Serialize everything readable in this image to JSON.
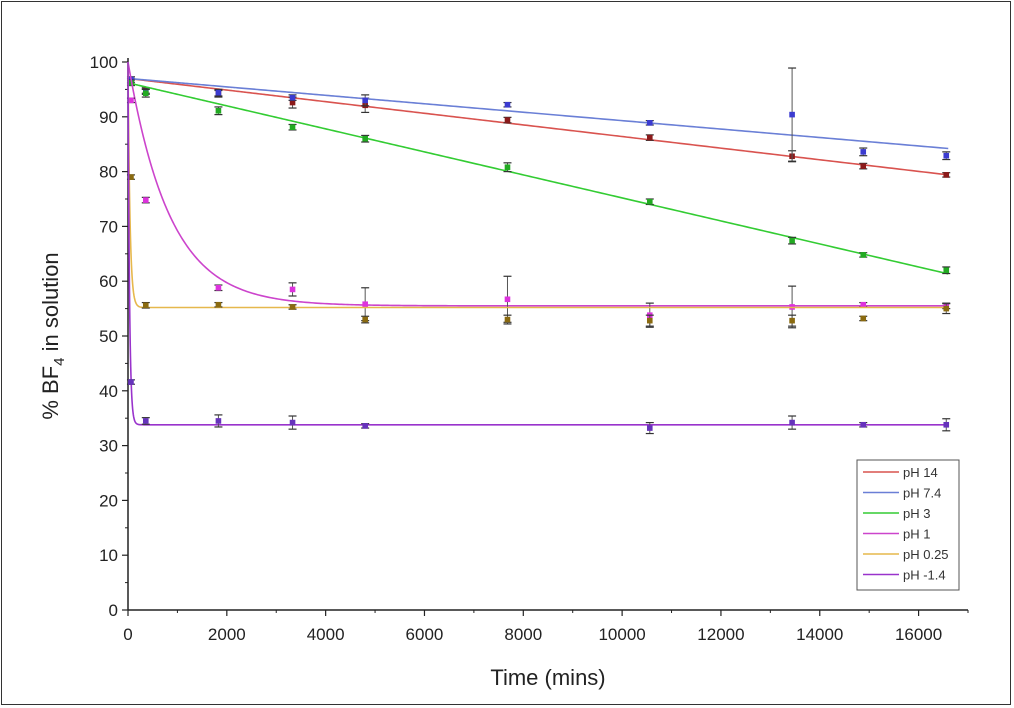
{
  "chart_data": {
    "type": "scatter",
    "title": "",
    "xlabel": "Time (mins)",
    "ylabel_prefix": "% BF",
    "ylabel_sub": "4",
    "ylabel_suffix": " in solution",
    "xlim": [
      0,
      17000
    ],
    "ylim": [
      0,
      100
    ],
    "xticks": [
      0,
      2000,
      4000,
      6000,
      8000,
      10000,
      12000,
      14000,
      16000
    ],
    "yticks": [
      0,
      10,
      20,
      30,
      40,
      50,
      60,
      70,
      80,
      90,
      100
    ],
    "grid": false,
    "legend_position": "bottom-right",
    "series": [
      {
        "name": "pH 14",
        "line_color": "#d9534f",
        "marker_color": "#8b1a1a",
        "fit": {
          "kind": "linear",
          "a": 97.0,
          "k": 0.00106
        },
        "points": [
          {
            "x": 60,
            "y": 96.5,
            "err": 0.5
          },
          {
            "x": 360,
            "y": 94.8,
            "err": 0.5
          },
          {
            "x": 1830,
            "y": 94.2,
            "err": 0.6
          },
          {
            "x": 3330,
            "y": 92.6,
            "err": 1.0
          },
          {
            "x": 4800,
            "y": 92.1,
            "err": 1.3
          },
          {
            "x": 7680,
            "y": 89.4,
            "err": 0.5
          },
          {
            "x": 10560,
            "y": 86.2,
            "err": 0.5
          },
          {
            "x": 13440,
            "y": 82.8,
            "err": 1.0
          },
          {
            "x": 14880,
            "y": 81.0,
            "err": 0.5
          },
          {
            "x": 16560,
            "y": 79.4,
            "err": 0.4
          }
        ]
      },
      {
        "name": "pH 7.4",
        "line_color": "#6a7fd6",
        "marker_color": "#3b3bd0",
        "fit": {
          "kind": "linear",
          "a": 97.0,
          "k": 0.00077
        },
        "points": [
          {
            "x": 60,
            "y": 96.8,
            "err": 0.5
          },
          {
            "x": 360,
            "y": 94.6,
            "err": 0.5
          },
          {
            "x": 1830,
            "y": 94.4,
            "err": 0.6
          },
          {
            "x": 3330,
            "y": 93.5,
            "err": 0.5
          },
          {
            "x": 4800,
            "y": 93.0,
            "err": 1.0
          },
          {
            "x": 7680,
            "y": 92.2,
            "err": 0.4
          },
          {
            "x": 10560,
            "y": 88.9,
            "err": 0.4
          },
          {
            "x": 13440,
            "y": 90.4,
            "err": 8.5
          },
          {
            "x": 14880,
            "y": 83.6,
            "err": 0.7
          },
          {
            "x": 16560,
            "y": 82.9,
            "err": 0.7
          }
        ]
      },
      {
        "name": "pH 3",
        "line_color": "#33cc33",
        "marker_color": "#22aa22",
        "fit": {
          "kind": "linear",
          "a": 96.2,
          "k": 0.0021
        },
        "points": [
          {
            "x": 60,
            "y": 96.2,
            "err": 0.5
          },
          {
            "x": 360,
            "y": 94.3,
            "err": 0.7
          },
          {
            "x": 1830,
            "y": 91.1,
            "err": 0.7
          },
          {
            "x": 3330,
            "y": 88.1,
            "err": 0.5
          },
          {
            "x": 4800,
            "y": 86.0,
            "err": 0.6
          },
          {
            "x": 7680,
            "y": 80.8,
            "err": 0.8
          },
          {
            "x": 10560,
            "y": 74.5,
            "err": 0.5
          },
          {
            "x": 13440,
            "y": 67.4,
            "err": 0.6
          },
          {
            "x": 14880,
            "y": 64.8,
            "err": 0.4
          },
          {
            "x": 16560,
            "y": 62.0,
            "err": 0.6
          }
        ]
      },
      {
        "name": "pH 1",
        "line_color": "#cc44cc",
        "marker_color": "#dd33dd",
        "fit": {
          "kind": "exp",
          "c": 55.5,
          "a": 44.5,
          "t": 850
        },
        "points": [
          {
            "x": 60,
            "y": 93.0,
            "err": 0.4
          },
          {
            "x": 360,
            "y": 74.8,
            "err": 0.5
          },
          {
            "x": 1830,
            "y": 58.8,
            "err": 0.5
          },
          {
            "x": 3330,
            "y": 58.5,
            "err": 1.2
          },
          {
            "x": 4800,
            "y": 55.8,
            "err": 3.0
          },
          {
            "x": 7680,
            "y": 56.7,
            "err": 4.2
          },
          {
            "x": 10560,
            "y": 53.8,
            "err": 2.2
          },
          {
            "x": 13440,
            "y": 55.3,
            "err": 3.8
          },
          {
            "x": 14880,
            "y": 55.7,
            "err": 0.4
          },
          {
            "x": 16560,
            "y": 55.5,
            "err": 0.5
          }
        ]
      },
      {
        "name": "pH 0.25",
        "line_color": "#e6b84c",
        "marker_color": "#8a6a10",
        "fit": {
          "kind": "exp",
          "c": 55.2,
          "a": 44.8,
          "t": 40
        },
        "points": [
          {
            "x": 60,
            "y": 79.0,
            "err": 0.4
          },
          {
            "x": 360,
            "y": 55.6,
            "err": 0.5
          },
          {
            "x": 1830,
            "y": 55.7,
            "err": 0.4
          },
          {
            "x": 3330,
            "y": 55.3,
            "err": 0.4
          },
          {
            "x": 4800,
            "y": 53.0,
            "err": 0.6
          },
          {
            "x": 7680,
            "y": 53.0,
            "err": 0.8
          },
          {
            "x": 10560,
            "y": 52.8,
            "err": 1.0
          },
          {
            "x": 13440,
            "y": 52.8,
            "err": 1.0
          },
          {
            "x": 14880,
            "y": 53.2,
            "err": 0.4
          },
          {
            "x": 16560,
            "y": 55.0,
            "err": 0.9
          }
        ]
      },
      {
        "name": "pH -1.4",
        "line_color": "#9933cc",
        "marker_color": "#6633bb",
        "fit": {
          "kind": "exp",
          "c": 33.8,
          "a": 66.2,
          "t": 30
        },
        "points": [
          {
            "x": 60,
            "y": 41.6,
            "err": 0.4
          },
          {
            "x": 360,
            "y": 34.5,
            "err": 0.6
          },
          {
            "x": 1830,
            "y": 34.5,
            "err": 1.1
          },
          {
            "x": 3330,
            "y": 34.2,
            "err": 1.2
          },
          {
            "x": 4800,
            "y": 33.6,
            "err": 0.4
          },
          {
            "x": 10560,
            "y": 33.2,
            "err": 1.0
          },
          {
            "x": 13440,
            "y": 34.2,
            "err": 1.2
          },
          {
            "x": 14880,
            "y": 33.8,
            "err": 0.4
          },
          {
            "x": 16560,
            "y": 33.8,
            "err": 1.1
          }
        ]
      }
    ]
  }
}
